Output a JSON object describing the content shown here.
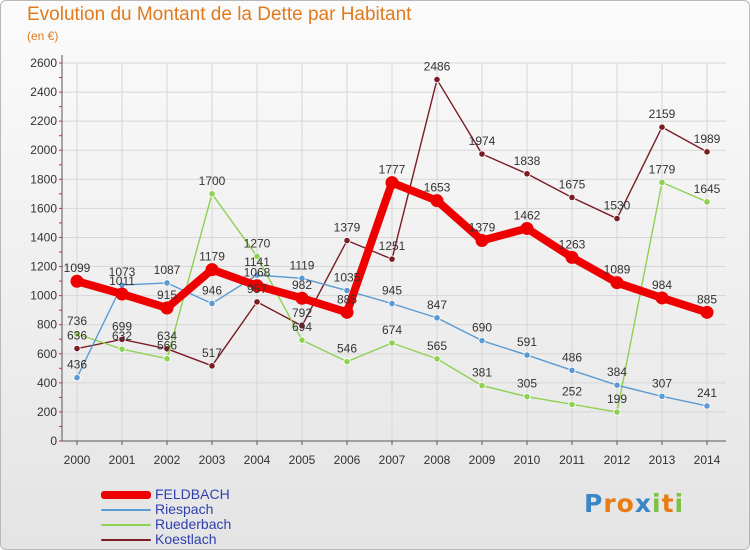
{
  "title": "Evolution du Montant de la Dette par Habitant",
  "subtitle": "(en €)",
  "logo": {
    "letters": [
      {
        "ch": "P",
        "color": "#3a86c6"
      },
      {
        "ch": "r",
        "color": "#e87d18"
      },
      {
        "ch": "o",
        "color": "#e87d18"
      },
      {
        "ch": "x",
        "color": "#3a86c6"
      },
      {
        "ch": "i",
        "color": "#7cc142"
      },
      {
        "ch": "t",
        "color": "#e87d18"
      },
      {
        "ch": "i",
        "color": "#7cc142"
      }
    ]
  },
  "chart_data": {
    "type": "line",
    "title": "Evolution du Montant de la Dette par Habitant",
    "subtitle": "(en €)",
    "x": [
      "2000",
      "2001",
      "2002",
      "2003",
      "2004",
      "2005",
      "2006",
      "2007",
      "2008",
      "2009",
      "2010",
      "2011",
      "2012",
      "2013",
      "2014"
    ],
    "ylim": [
      0,
      2600
    ],
    "yticks": [
      "0",
      "200",
      "400",
      "600",
      "800",
      "1000",
      "1200",
      "1400",
      "1600",
      "1800",
      "2000",
      "2200",
      "2400",
      "2600"
    ],
    "grid": true,
    "legend_position": "bottom-left",
    "series": [
      {
        "name": "FELDBACH",
        "color": "#ee0000",
        "values": [
          1099,
          1011,
          915,
          1179,
          1068,
          982,
          885,
          1777,
          1653,
          1379,
          1462,
          1263,
          1089,
          984,
          885
        ],
        "labels": [
          "1099",
          "1011",
          "915",
          "1179",
          "1068",
          "982",
          "885",
          "1777",
          "1653",
          "1379",
          "1462",
          "1263",
          "1089",
          "984",
          "885"
        ]
      },
      {
        "name": "Riespach",
        "color": "#5a9ad2",
        "values": [
          436,
          1073,
          1087,
          946,
          1141,
          1119,
          1035,
          945,
          847,
          690,
          591,
          486,
          384,
          307,
          241
        ],
        "labels": [
          "436",
          "1073",
          "1087",
          "946",
          "1141",
          "1119",
          "1035",
          "945",
          "847",
          "690",
          "591",
          "486",
          "384",
          "307",
          "241"
        ]
      },
      {
        "name": "Ruederbach",
        "color": "#8ed152",
        "values": [
          736,
          632,
          566,
          1700,
          1270,
          694,
          546,
          674,
          565,
          381,
          305,
          252,
          199,
          1779,
          1645
        ],
        "labels": [
          "736",
          "632",
          "566",
          "1700",
          "1270",
          "694",
          "546",
          "674",
          "565",
          "381",
          "305",
          "252",
          "199",
          "1779",
          "1645"
        ]
      },
      {
        "name": "Koestlach",
        "color": "#7a1c24",
        "values": [
          636,
          699,
          634,
          517,
          957,
          792,
          1379,
          1251,
          2486,
          1974,
          1838,
          1675,
          1530,
          2159,
          1989
        ],
        "labels": [
          "636",
          "699",
          "634",
          "517",
          "957",
          "792",
          "1379",
          "1251",
          "2486",
          "1974",
          "1838",
          "1675",
          "1530",
          "2159",
          "1989"
        ]
      }
    ]
  }
}
